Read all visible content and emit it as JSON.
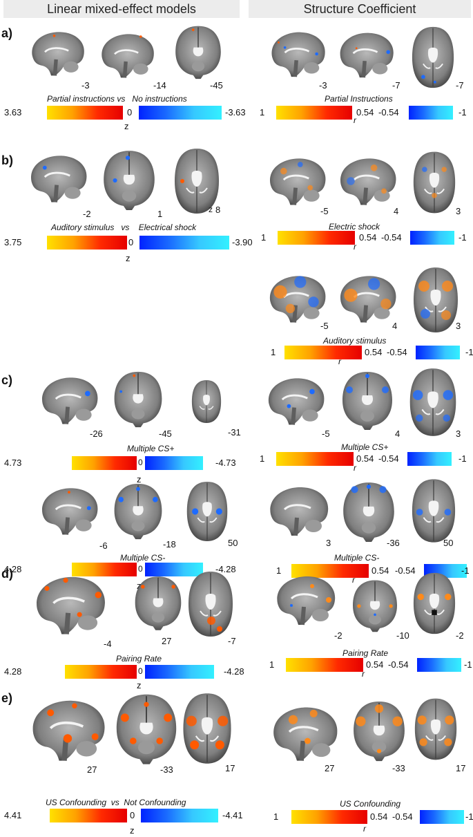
{
  "headers": {
    "left": "Linear mixed-effect models",
    "right": "Structure Coefficient"
  },
  "panels": {
    "a": {
      "label": "a)",
      "left": {
        "slices": [
          "-3",
          "-14",
          "-45"
        ],
        "title_a": "Partial instructions",
        "vs": "vs",
        "title_b": "No instructions",
        "cb": {
          "max": "3.63",
          "mid": "0",
          "min": "-3.63",
          "unit": "z"
        }
      },
      "right": {
        "slices": [
          "-3",
          "-7",
          "-7"
        ],
        "title": "Partial Instructions",
        "cb": {
          "max": "1",
          "mid_pos": "0.54",
          "mid_neg": "-0.54",
          "min": "-1",
          "unit": "r"
        }
      }
    },
    "b": {
      "label": "b)",
      "left": {
        "slices": [
          "-2",
          "1",
          "8"
        ],
        "title_a": "Auditory stimulus",
        "vs": "vs",
        "title_b": "Electrical shock",
        "extra_z": "z",
        "cb": {
          "max": "3.75",
          "mid": "0",
          "min": "-3.90",
          "unit": "z"
        }
      },
      "right1": {
        "slices": [
          "-5",
          "4",
          "3"
        ],
        "title": "Electric shock",
        "cb": {
          "max": "1",
          "mid_pos": "0.54",
          "mid_neg": "-0.54",
          "min": "-1",
          "unit": "r"
        }
      },
      "right2": {
        "slices": [
          "-5",
          "4",
          "3"
        ],
        "title": "Auditory stimulus",
        "cb": {
          "max": "1",
          "mid_pos": "0.54",
          "mid_neg": "-0.54",
          "min": "-1",
          "unit": "r"
        }
      }
    },
    "c": {
      "label": "c)",
      "left1": {
        "slices": [
          "-26",
          "-45",
          "-31"
        ],
        "title": "Multiple CS+",
        "cb": {
          "max": "4.73",
          "mid": "0",
          "min": "-4.73",
          "unit": "z"
        }
      },
      "left2": {
        "slices": [
          "-6",
          "-18",
          "50"
        ],
        "title": "Multiple CS-",
        "cb": {
          "max": "4.28",
          "mid": "0",
          "min": "-4.28",
          "unit": "z"
        }
      },
      "right1": {
        "slices": [
          "-5",
          "4",
          "3"
        ],
        "title": "Multiple CS+",
        "cb": {
          "max": "1",
          "mid_pos": "0.54",
          "mid_neg": "-0.54",
          "min": "-1",
          "unit": "r"
        }
      },
      "right2": {
        "slices": [
          "3",
          "-36",
          "50"
        ],
        "title": "Multiple CS-",
        "cb": {
          "max": "1",
          "mid_pos": "0.54",
          "mid_neg": "-0.54",
          "min": "-1",
          "unit": "r"
        }
      }
    },
    "d": {
      "label": "d)",
      "left": {
        "slices": [
          "-4",
          "27",
          "-7"
        ],
        "title": "Pairing Rate",
        "cb": {
          "max": "4.28",
          "mid": "0",
          "min": "-4.28",
          "unit": "z"
        }
      },
      "right": {
        "slices": [
          "-2",
          "-10",
          "-2"
        ],
        "title": "Pairing Rate",
        "cb": {
          "max": "1",
          "mid_pos": "0.54",
          "mid_neg": "-0.54",
          "min": "-1",
          "unit": "r"
        }
      }
    },
    "e": {
      "label": "e)",
      "left": {
        "slices": [
          "27",
          "-33",
          "17"
        ],
        "title_a": "US Confounding",
        "vs": "vs",
        "title_b": "Not Confounding",
        "cb": {
          "max": "4.41",
          "mid": "0",
          "min": "-4.41",
          "unit": "z"
        }
      },
      "right": {
        "slices": [
          "27",
          "-33",
          "17"
        ],
        "title": "US Confounding",
        "cb": {
          "max": "1",
          "mid_pos": "0.54",
          "mid_neg": "-0.54",
          "min": "-1",
          "unit": "r"
        }
      }
    }
  },
  "colors": {
    "warm": "#ff3b00",
    "cool": "#1e6bff",
    "brain_gray": "#8a8a8a"
  }
}
